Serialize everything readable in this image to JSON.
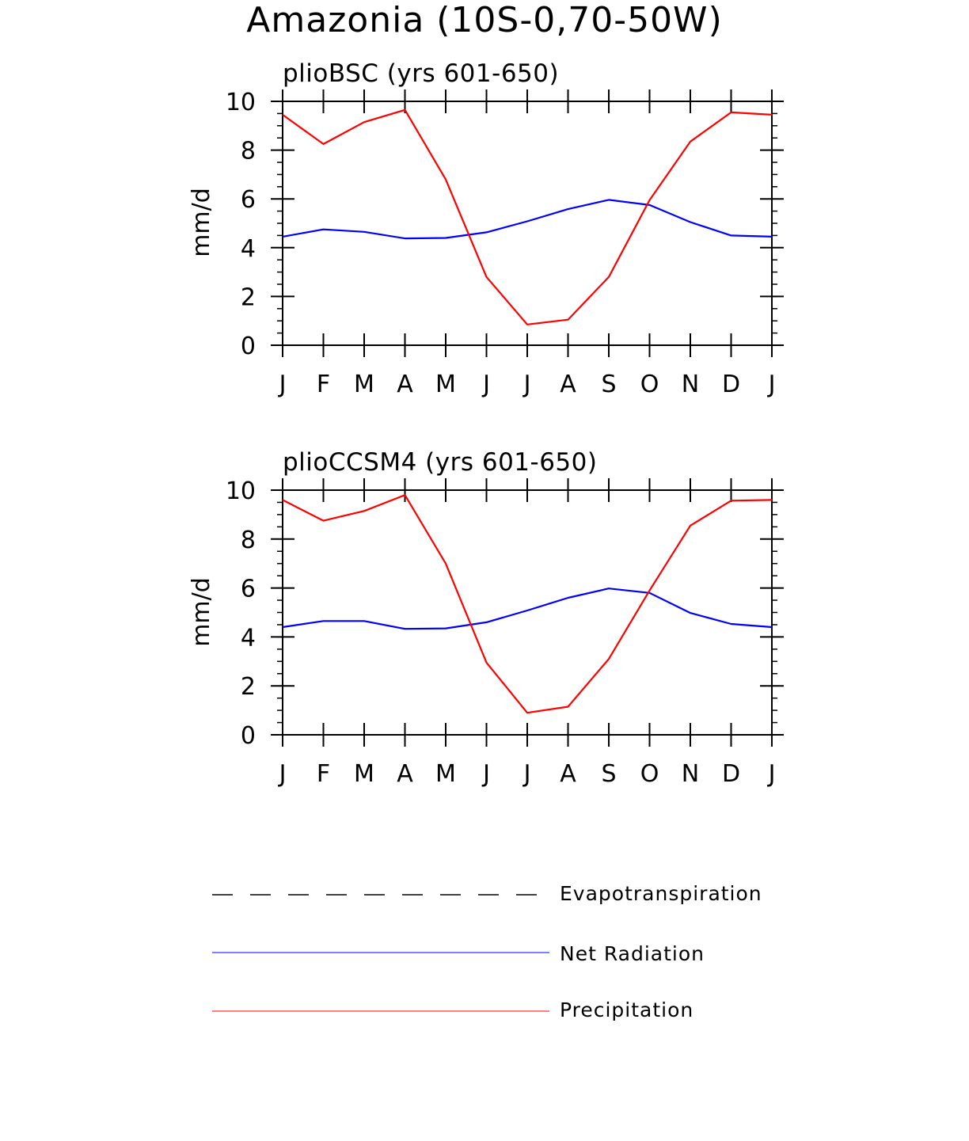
{
  "title": "Amazonia (10S-0,70-50W)",
  "colors": {
    "net_radiation": "#0000ff",
    "precipitation": "#ff0000",
    "evapotranspiration": "#000000"
  },
  "chart_data": [
    {
      "type": "line",
      "title": "plioBSC (yrs 601-650)",
      "xlabel": "",
      "ylabel": "mm/d",
      "ylim": [
        0,
        10
      ],
      "yticks": [
        0,
        2,
        4,
        6,
        8,
        10
      ],
      "categories": [
        "J",
        "F",
        "M",
        "A",
        "M",
        "J",
        "J",
        "A",
        "S",
        "O",
        "N",
        "D",
        "J"
      ],
      "series": [
        {
          "name": "Net Radiation",
          "color": "#0000ff",
          "values": [
            4.45,
            4.75,
            4.65,
            4.38,
            4.4,
            4.63,
            5.08,
            5.58,
            5.96,
            5.75,
            5.05,
            4.5,
            4.45
          ]
        },
        {
          "name": "Precipitation",
          "color": "#ff0000",
          "values": [
            9.45,
            8.25,
            9.15,
            9.65,
            6.8,
            2.8,
            0.85,
            1.05,
            2.8,
            5.95,
            8.35,
            9.55,
            9.45
          ]
        }
      ]
    },
    {
      "type": "line",
      "title": "plioCCSM4 (yrs 601-650)",
      "xlabel": "",
      "ylabel": "mm/d",
      "ylim": [
        0,
        10
      ],
      "yticks": [
        0,
        2,
        4,
        6,
        8,
        10
      ],
      "categories": [
        "J",
        "F",
        "M",
        "A",
        "M",
        "J",
        "J",
        "A",
        "S",
        "O",
        "N",
        "D",
        "J"
      ],
      "series": [
        {
          "name": "Net Radiation",
          "color": "#0000ff",
          "values": [
            4.4,
            4.65,
            4.65,
            4.33,
            4.35,
            4.6,
            5.08,
            5.6,
            5.98,
            5.8,
            4.98,
            4.53,
            4.4
          ]
        },
        {
          "name": "Precipitation",
          "color": "#ff0000",
          "values": [
            9.6,
            8.75,
            9.15,
            9.8,
            7.0,
            2.95,
            0.9,
            1.15,
            3.1,
            5.9,
            8.55,
            9.57,
            9.6
          ]
        }
      ]
    }
  ],
  "legend": [
    {
      "label": "Evapotranspiration",
      "style": "dashed",
      "color": "#000000"
    },
    {
      "label": "Net Radiation",
      "style": "solid",
      "color": "#0000ff"
    },
    {
      "label": "Precipitation",
      "style": "solid",
      "color": "#ff0000"
    }
  ]
}
